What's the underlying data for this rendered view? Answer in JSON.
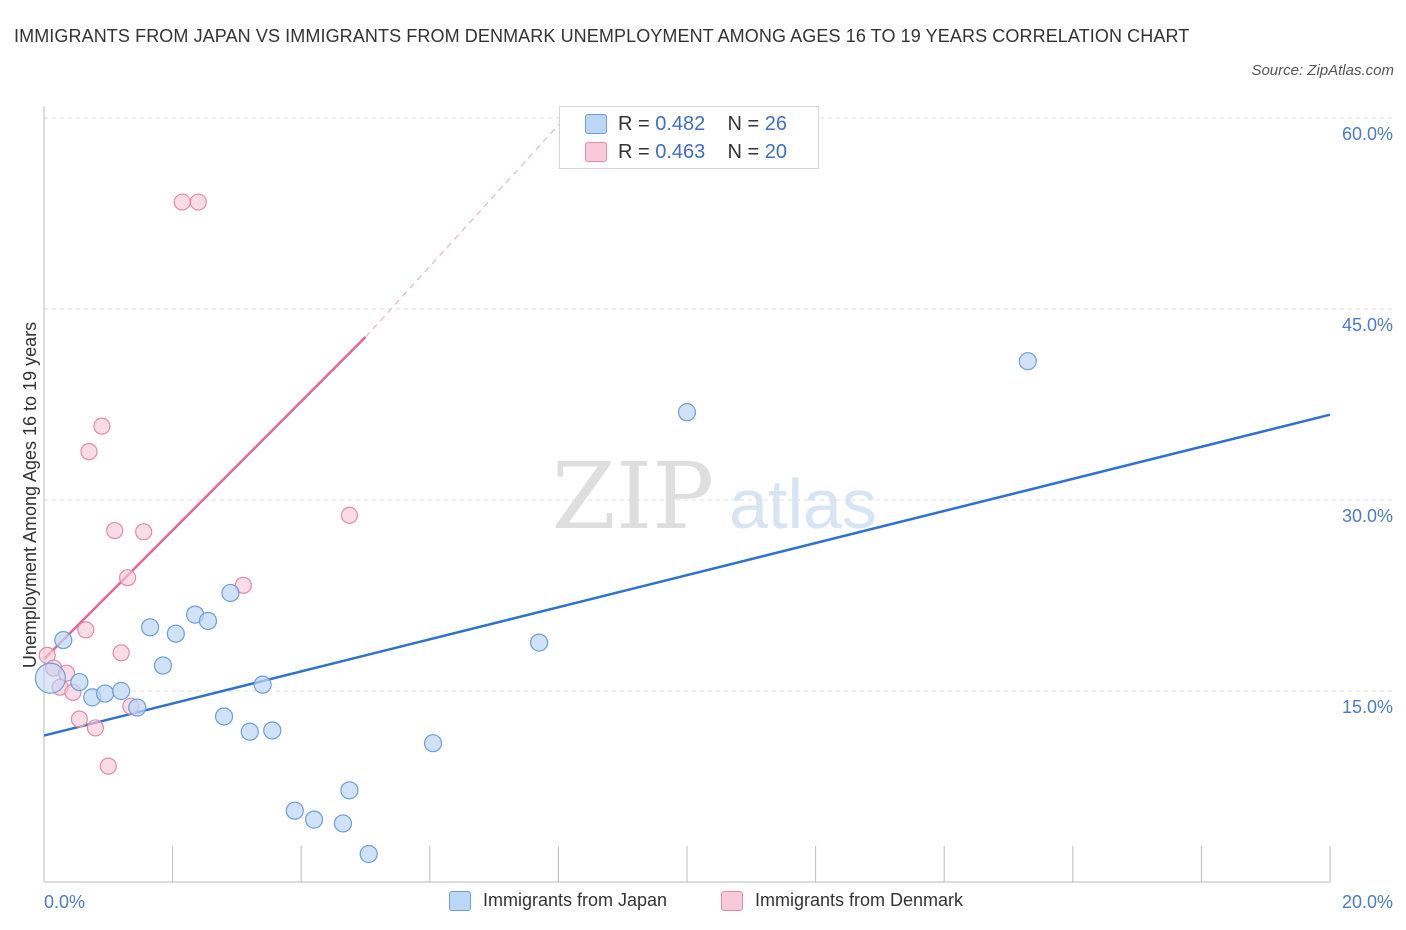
{
  "header": {
    "title": "IMMIGRANTS FROM JAPAN VS IMMIGRANTS FROM DENMARK UNEMPLOYMENT AMONG AGES 16 TO 19 YEARS CORRELATION CHART",
    "source": "Source: ZipAtlas.com"
  },
  "watermark": {
    "zip": "ZIP",
    "atlas": "atlas"
  },
  "legend_top": {
    "japan": {
      "r_label": "R =",
      "r_value": "0.482",
      "n_label": "N =",
      "n_value": "26"
    },
    "denmark": {
      "r_label": "R =",
      "r_value": "0.463",
      "n_label": "N =",
      "n_value": "20"
    }
  },
  "colors": {
    "japan_fill": "#bcd6f5",
    "japan_stroke": "#6b9ed9",
    "japan_line": "#2f72cc",
    "denmark_fill": "#f8c9d8",
    "denmark_stroke": "#e48aa7",
    "denmark_line": "#e8668f",
    "grid": "#dddddd",
    "axis": "#bbbbbb",
    "tick_text": "#4a7cc9"
  },
  "chart_data": {
    "type": "scatter",
    "title": "IMMIGRANTS FROM JAPAN VS IMMIGRANTS FROM DENMARK UNEMPLOYMENT AMONG AGES 16 TO 19 YEARS CORRELATION CHART",
    "xlabel": "",
    "ylabel": "Unemployment Among Ages 16 to 19 years",
    "xlim": [
      0,
      20
    ],
    "ylim": [
      0,
      60
    ],
    "x_tick_labels": [
      "0.0%",
      "20.0%"
    ],
    "y_ticks": [
      15,
      30,
      45,
      60
    ],
    "y_tick_labels": [
      "15.0%",
      "30.0%",
      "45.0%",
      "60.0%"
    ],
    "series": [
      {
        "name": "Immigrants from Japan",
        "color": "#6b9ed9",
        "points": [
          {
            "x": 0.1,
            "y": 16.0,
            "size": "large"
          },
          {
            "x": 0.3,
            "y": 19.0
          },
          {
            "x": 0.55,
            "y": 15.7
          },
          {
            "x": 0.75,
            "y": 14.5
          },
          {
            "x": 0.95,
            "y": 14.8
          },
          {
            "x": 1.2,
            "y": 15.0
          },
          {
            "x": 1.45,
            "y": 13.7
          },
          {
            "x": 1.65,
            "y": 20.0
          },
          {
            "x": 1.85,
            "y": 17.0
          },
          {
            "x": 2.05,
            "y": 19.5
          },
          {
            "x": 2.35,
            "y": 21.0
          },
          {
            "x": 2.55,
            "y": 20.5
          },
          {
            "x": 2.8,
            "y": 13.0
          },
          {
            "x": 2.9,
            "y": 22.7
          },
          {
            "x": 3.2,
            "y": 11.8
          },
          {
            "x": 3.4,
            "y": 15.5
          },
          {
            "x": 3.55,
            "y": 11.9
          },
          {
            "x": 3.9,
            "y": 5.6
          },
          {
            "x": 4.2,
            "y": 4.9
          },
          {
            "x": 4.65,
            "y": 4.6
          },
          {
            "x": 4.75,
            "y": 7.2
          },
          {
            "x": 5.05,
            "y": 2.2
          },
          {
            "x": 6.05,
            "y": 10.9
          },
          {
            "x": 7.7,
            "y": 18.8
          },
          {
            "x": 10.0,
            "y": 36.9
          },
          {
            "x": 15.3,
            "y": 40.9
          }
        ],
        "trendline": {
          "x": [
            0,
            20
          ],
          "y": [
            11.5,
            36.7
          ]
        }
      },
      {
        "name": "Immigrants from Denmark",
        "color": "#e48aa7",
        "points": [
          {
            "x": 0.05,
            "y": 17.8
          },
          {
            "x": 0.15,
            "y": 16.8
          },
          {
            "x": 0.25,
            "y": 15.3
          },
          {
            "x": 0.35,
            "y": 16.4
          },
          {
            "x": 0.45,
            "y": 14.9
          },
          {
            "x": 0.55,
            "y": 12.8
          },
          {
            "x": 0.65,
            "y": 19.8
          },
          {
            "x": 0.7,
            "y": 33.8
          },
          {
            "x": 0.8,
            "y": 12.1
          },
          {
            "x": 0.9,
            "y": 35.8
          },
          {
            "x": 1.0,
            "y": 9.1
          },
          {
            "x": 1.1,
            "y": 27.6
          },
          {
            "x": 1.2,
            "y": 18.0
          },
          {
            "x": 1.3,
            "y": 23.9
          },
          {
            "x": 1.35,
            "y": 13.8
          },
          {
            "x": 1.55,
            "y": 27.5
          },
          {
            "x": 2.15,
            "y": 53.4
          },
          {
            "x": 2.4,
            "y": 53.4
          },
          {
            "x": 3.1,
            "y": 23.3
          },
          {
            "x": 4.75,
            "y": 28.8
          }
        ],
        "trendline": {
          "x": [
            0,
            5.0
          ],
          "y": [
            17.5,
            42.8
          ]
        },
        "trendline_extension": {
          "x": [
            5.0,
            8.1
          ],
          "y": [
            42.8,
            60.0
          ]
        }
      }
    ]
  },
  "legend_bottom": {
    "items": [
      {
        "label": "Immigrants from Japan"
      },
      {
        "label": "Immigrants from Denmark"
      }
    ]
  }
}
